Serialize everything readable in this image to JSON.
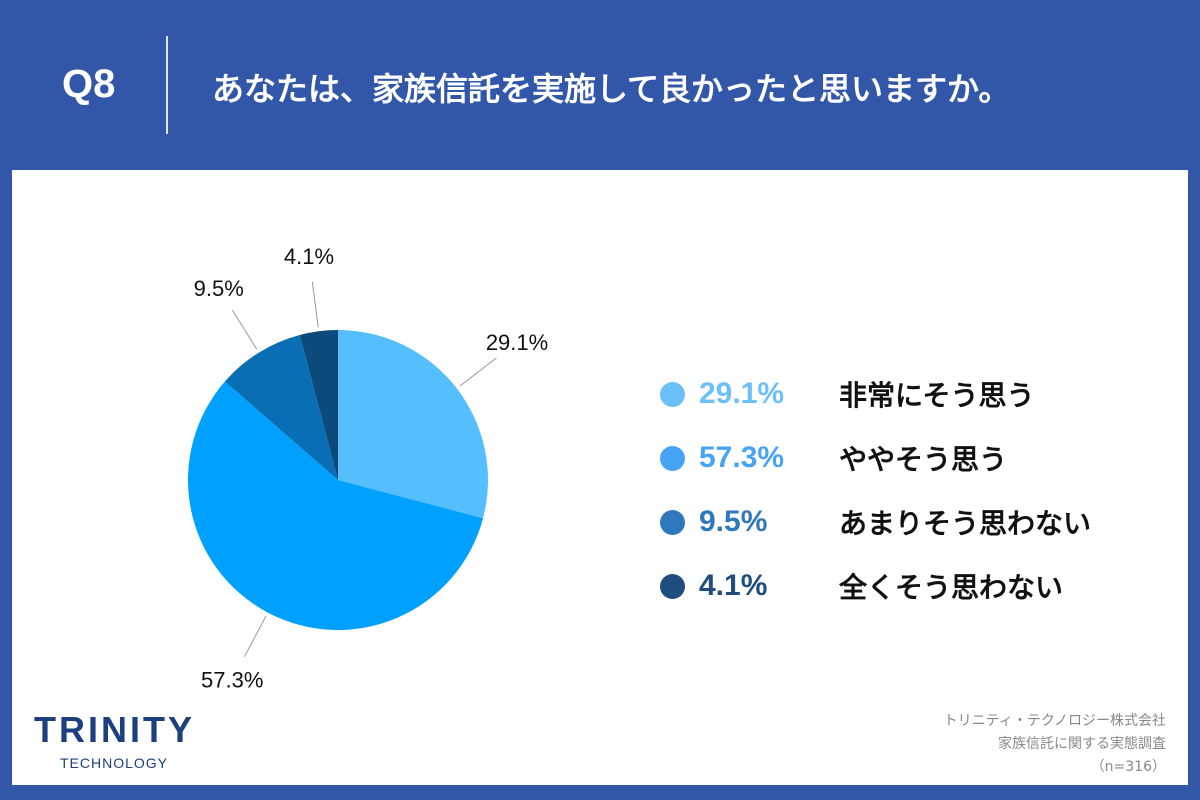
{
  "header": {
    "qnum": "Q8",
    "title": "あなたは、家族信託を実施して良かったと思いますか。"
  },
  "chart_data": {
    "type": "pie",
    "start": "top",
    "direction": "clockwise",
    "categories": [
      "非常にそう思う",
      "ややそう思う",
      "あまりそう思わない",
      "全くそう思わない"
    ],
    "values": [
      29.1,
      57.3,
      9.5,
      4.1
    ],
    "data_labels": [
      "29.1%",
      "57.3%",
      "9.5%",
      "4.1%"
    ],
    "colors": [
      "#55befd",
      "#00a0ff",
      "#0a6eb4",
      "#0b4a7a"
    ],
    "legend_colors": [
      "#6cc0f9",
      "#47a3f5",
      "#2f78bd",
      "#1e4d7e"
    ],
    "legend_placement": "right"
  },
  "logo": {
    "line1": "TRINITY",
    "line2": "TECHNOLOGY"
  },
  "credits": {
    "company": "トリニティ・テクノロジー株式会社",
    "survey": "家族信託に関する実態調査",
    "n": "（n=316）"
  }
}
